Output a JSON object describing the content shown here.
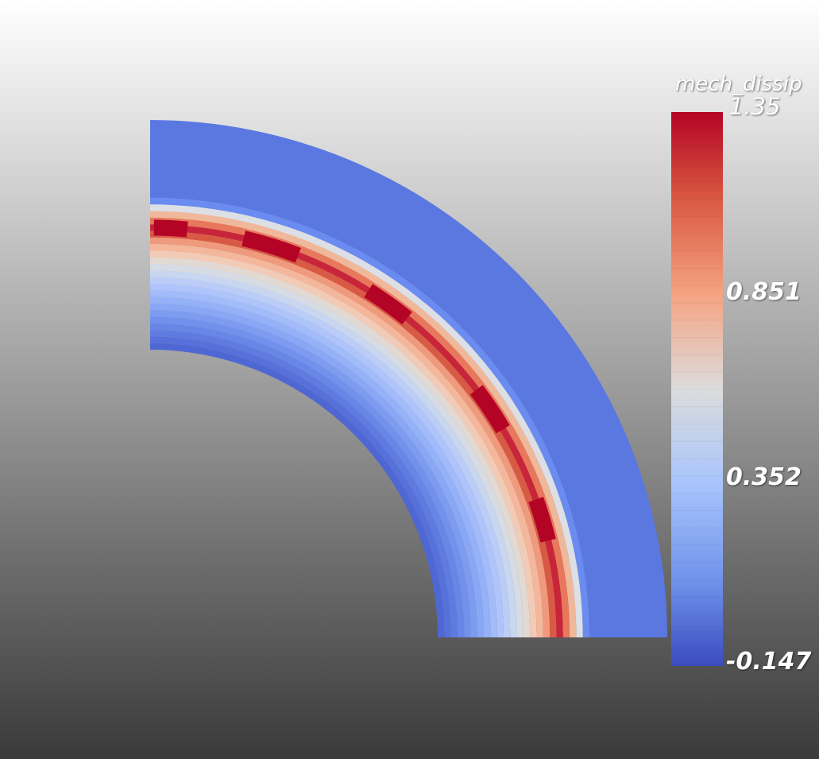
{
  "colorbar": {
    "field_name": "mech_dissip",
    "ticks": [
      "1.35",
      "0.851",
      "0.352",
      "-0.147"
    ],
    "range": [
      -0.147,
      1.35
    ],
    "colormap": "cool-to-warm",
    "colors": {
      "low": "#3b4cc0",
      "mid": "#dddddd",
      "high": "#b40426"
    }
  },
  "render": {
    "shape": "quarter-annulus",
    "outer_band_value": 0.0,
    "hotspot_value": 1.35,
    "inner_value": -0.147
  }
}
